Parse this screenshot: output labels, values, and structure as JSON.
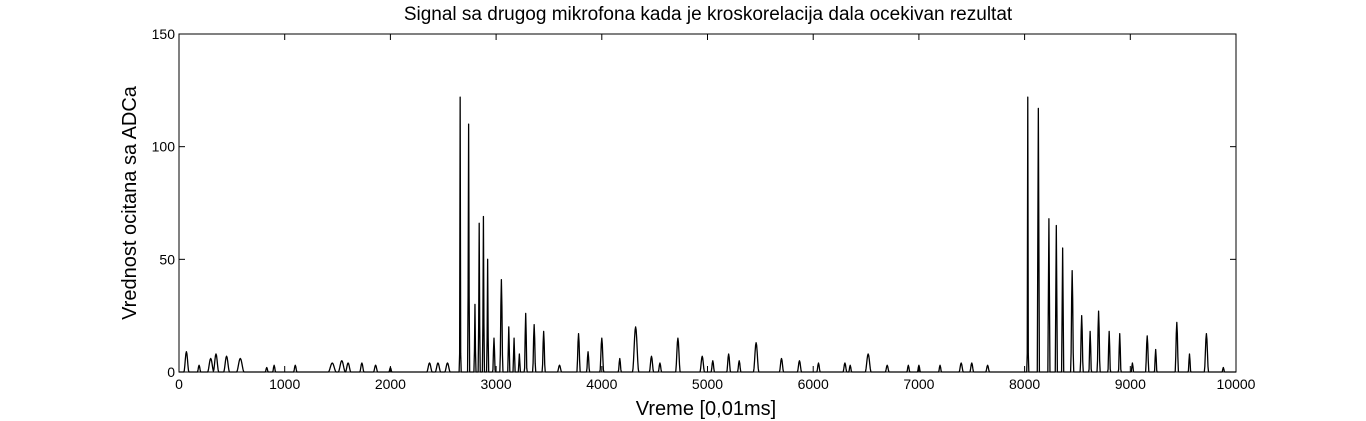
{
  "chart_data": {
    "type": "line",
    "title": "Signal sa drugog mikrofona kada je kroskorelacija dala ocekivan rezultat",
    "xlabel": "Vreme [0,01ms]",
    "ylabel": "Vrednost ocitana sa ADCa",
    "xlim": [
      0,
      10000
    ],
    "ylim": [
      0,
      150
    ],
    "xticks": [
      0,
      1000,
      2000,
      3000,
      4000,
      5000,
      6000,
      7000,
      8000,
      9000,
      10000
    ],
    "yticks": [
      0,
      50,
      100,
      150
    ],
    "xtick_labels": [
      "0",
      "1000",
      "2000",
      "3000",
      "4000",
      "5000",
      "6000",
      "7000",
      "8000",
      "9000",
      "10000"
    ],
    "ytick_labels": [
      "0",
      "50",
      "100",
      "150"
    ],
    "grid": false,
    "line_color": "#000000",
    "series": [
      {
        "peaks": [
          [
            70,
            9,
            24
          ],
          [
            190,
            3,
            16
          ],
          [
            300,
            6,
            30
          ],
          [
            350,
            8,
            26
          ],
          [
            450,
            7,
            28
          ],
          [
            580,
            6,
            36
          ],
          [
            830,
            2,
            14
          ],
          [
            900,
            3,
            14
          ],
          [
            1100,
            3,
            16
          ],
          [
            1450,
            4,
            38
          ],
          [
            1540,
            5,
            34
          ],
          [
            1600,
            4,
            26
          ],
          [
            1730,
            4,
            20
          ],
          [
            1860,
            3,
            20
          ],
          [
            2000,
            2,
            14
          ],
          [
            2370,
            4,
            26
          ],
          [
            2450,
            4,
            26
          ],
          [
            2540,
            4,
            26
          ],
          [
            2660,
            122,
            6
          ],
          [
            2740,
            110,
            8
          ],
          [
            2800,
            30,
            8
          ],
          [
            2840,
            66,
            8
          ],
          [
            2880,
            69,
            8
          ],
          [
            2920,
            50,
            8
          ],
          [
            2980,
            15,
            12
          ],
          [
            3050,
            41,
            14
          ],
          [
            3120,
            20,
            10
          ],
          [
            3170,
            15,
            10
          ],
          [
            3220,
            8,
            10
          ],
          [
            3280,
            26,
            12
          ],
          [
            3360,
            21,
            14
          ],
          [
            3450,
            18,
            14
          ],
          [
            3600,
            3,
            20
          ],
          [
            3780,
            17,
            16
          ],
          [
            3870,
            9,
            14
          ],
          [
            4000,
            15,
            18
          ],
          [
            4170,
            6,
            14
          ],
          [
            4320,
            20,
            30
          ],
          [
            4470,
            7,
            20
          ],
          [
            4550,
            4,
            16
          ],
          [
            4720,
            15,
            22
          ],
          [
            4950,
            7,
            22
          ],
          [
            5050,
            5,
            16
          ],
          [
            5200,
            8,
            18
          ],
          [
            5300,
            5,
            16
          ],
          [
            5460,
            13,
            26
          ],
          [
            5700,
            6,
            20
          ],
          [
            5870,
            5,
            20
          ],
          [
            6050,
            4,
            16
          ],
          [
            6300,
            4,
            18
          ],
          [
            6350,
            3,
            14
          ],
          [
            6520,
            8,
            28
          ],
          [
            6700,
            3,
            18
          ],
          [
            6900,
            3,
            14
          ],
          [
            7000,
            3,
            14
          ],
          [
            7200,
            3,
            14
          ],
          [
            7400,
            4,
            20
          ],
          [
            7500,
            4,
            18
          ],
          [
            7650,
            3,
            18
          ],
          [
            8030,
            122,
            6
          ],
          [
            8130,
            117,
            10
          ],
          [
            8230,
            68,
            10
          ],
          [
            8300,
            65,
            10
          ],
          [
            8360,
            55,
            10
          ],
          [
            8450,
            45,
            14
          ],
          [
            8540,
            25,
            14
          ],
          [
            8620,
            18,
            12
          ],
          [
            8700,
            27,
            14
          ],
          [
            8800,
            18,
            12
          ],
          [
            8900,
            17,
            12
          ],
          [
            9020,
            4,
            12
          ],
          [
            9160,
            16,
            16
          ],
          [
            9240,
            10,
            12
          ],
          [
            9440,
            22,
            16
          ],
          [
            9560,
            8,
            12
          ],
          [
            9720,
            17,
            20
          ],
          [
            9880,
            2,
            12
          ]
        ]
      }
    ]
  }
}
